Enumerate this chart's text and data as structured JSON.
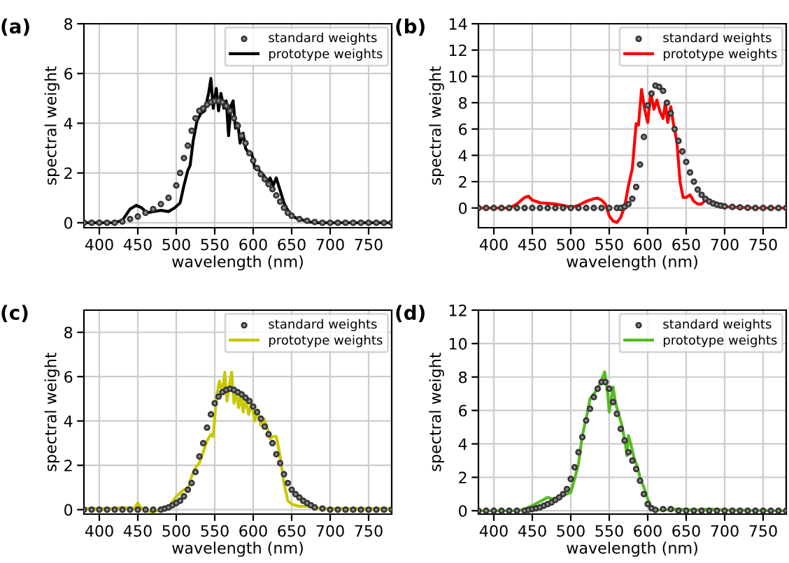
{
  "chart_data": [
    {
      "type": "line",
      "title": "(a)",
      "xlabel": "wavelength (nm)",
      "ylabel": "spectral weight",
      "xlim": [
        380,
        780
      ],
      "xticks": [
        400,
        450,
        500,
        550,
        600,
        650,
        700,
        750
      ],
      "ylim": [
        -0.2,
        8
      ],
      "yticks": [
        0,
        2,
        4,
        6,
        8
      ],
      "grid": true,
      "legend": "top right",
      "series": [
        {
          "name": "standard weights",
          "type": "scatter",
          "marker": "circle",
          "color": "#333333",
          "x": [
            380,
            390,
            400,
            410,
            420,
            430,
            440,
            450,
            460,
            470,
            480,
            490,
            500,
            505,
            510,
            515,
            520,
            525,
            530,
            535,
            540,
            545,
            550,
            555,
            560,
            565,
            570,
            575,
            580,
            585,
            590,
            595,
            600,
            605,
            610,
            615,
            620,
            625,
            630,
            635,
            640,
            645,
            650,
            660,
            670,
            680,
            690,
            700,
            710,
            720,
            730,
            740,
            750,
            760,
            770,
            780
          ],
          "values": [
            0,
            0,
            0,
            0,
            0,
            0.05,
            0.15,
            0.25,
            0.4,
            0.55,
            0.75,
            1.0,
            1.5,
            2.0,
            2.6,
            3.1,
            3.7,
            4.2,
            4.5,
            4.6,
            4.75,
            4.85,
            4.9,
            4.9,
            4.85,
            4.7,
            4.5,
            4.2,
            3.9,
            3.5,
            3.2,
            2.8,
            2.5,
            2.2,
            1.95,
            1.75,
            1.55,
            1.35,
            1.1,
            0.85,
            0.6,
            0.4,
            0.28,
            0.15,
            0.08,
            0.03,
            0,
            0,
            0,
            0,
            0,
            0,
            0,
            0,
            0,
            0
          ]
        },
        {
          "name": "prototype weights",
          "line_style": "solid",
          "color": "#000000",
          "x": [
            380,
            420,
            430,
            440,
            448,
            455,
            462,
            470,
            480,
            490,
            498,
            505,
            510,
            515,
            518,
            522,
            527,
            532,
            537,
            542,
            545,
            548,
            552,
            555,
            558,
            562,
            565,
            568,
            571,
            574,
            577,
            580,
            583,
            587,
            590,
            594,
            598,
            602,
            606,
            610,
            614,
            618,
            622,
            626,
            630,
            635,
            640,
            645,
            650,
            655,
            660,
            670,
            680,
            780
          ],
          "values": [
            0,
            0,
            0.1,
            0.55,
            0.7,
            0.6,
            0.4,
            0.45,
            0.5,
            0.45,
            0.6,
            0.8,
            1.5,
            2.1,
            2.3,
            3.3,
            4.1,
            4.4,
            4.5,
            5.2,
            5.8,
            4.6,
            5.4,
            4.5,
            5.2,
            4.6,
            4.9,
            3.5,
            4.7,
            4.9,
            3.8,
            4.0,
            3.2,
            3.6,
            3.0,
            2.8,
            2.8,
            2.2,
            2.2,
            2.0,
            1.9,
            1.6,
            1.8,
            1.5,
            1.8,
            1.3,
            0.8,
            0.5,
            0.3,
            0.2,
            0.15,
            0.05,
            0,
            0
          ]
        }
      ]
    },
    {
      "type": "line",
      "title": "(b)",
      "xlabel": "wavelength (nm)",
      "ylabel": "spectral weight",
      "xlim": [
        380,
        780
      ],
      "xticks": [
        400,
        450,
        500,
        550,
        600,
        650,
        700,
        750
      ],
      "ylim": [
        -1.5,
        14
      ],
      "yticks": [
        0,
        2,
        4,
        6,
        8,
        10,
        12,
        14
      ],
      "grid": true,
      "legend": "top right",
      "series": [
        {
          "name": "standard weights",
          "type": "scatter",
          "marker": "circle",
          "color": "#333333",
          "x": [
            380,
            390,
            400,
            410,
            420,
            430,
            440,
            450,
            460,
            470,
            480,
            490,
            500,
            510,
            520,
            530,
            540,
            550,
            560,
            565,
            570,
            575,
            580,
            585,
            590,
            595,
            600,
            605,
            610,
            615,
            620,
            625,
            630,
            635,
            640,
            645,
            650,
            655,
            660,
            665,
            670,
            675,
            680,
            685,
            690,
            695,
            700,
            710,
            720,
            730,
            740,
            750,
            760,
            770,
            780
          ],
          "values": [
            0,
            0,
            0,
            0,
            0,
            0,
            0,
            0,
            0,
            0,
            0,
            0,
            0,
            0,
            0,
            0,
            0,
            0,
            0,
            0,
            0.1,
            0.3,
            0.7,
            1.6,
            3.3,
            5.4,
            7.8,
            8.7,
            9.3,
            9.2,
            8.9,
            8.0,
            7.2,
            6.0,
            5.1,
            4.3,
            3.5,
            2.7,
            2.0,
            1.4,
            1.0,
            0.7,
            0.5,
            0.35,
            0.25,
            0.18,
            0.12,
            0.08,
            0.05,
            0.02,
            0,
            0,
            0,
            0,
            0
          ]
        },
        {
          "name": "prototype weights",
          "line_style": "solid",
          "color": "#ff0000",
          "x": [
            380,
            420,
            430,
            440,
            445,
            450,
            460,
            470,
            480,
            490,
            500,
            510,
            520,
            530,
            535,
            540,
            545,
            550,
            555,
            560,
            565,
            570,
            575,
            580,
            585,
            588,
            592,
            596,
            600,
            604,
            608,
            612,
            616,
            620,
            623,
            626,
            630,
            634,
            638,
            642,
            646,
            650,
            655,
            660,
            665,
            670,
            675,
            680,
            690,
            700,
            720,
            740,
            780
          ],
          "values": [
            0,
            0,
            0.3,
            0.8,
            0.9,
            0.6,
            0.4,
            0.35,
            0.3,
            0.2,
            0.05,
            0.2,
            0.5,
            0.7,
            0.75,
            0.6,
            0.3,
            -0.6,
            -1.0,
            -1.1,
            -0.7,
            0.1,
            1.7,
            3.0,
            6.4,
            6.3,
            9.0,
            7.5,
            6.5,
            8.8,
            7.5,
            8.2,
            7.3,
            6.8,
            8.0,
            6.5,
            7.7,
            6.2,
            5.0,
            2.0,
            0.8,
            0.8,
            1.0,
            0.5,
            0.3,
            0.3,
            0.6,
            0.4,
            0.2,
            0.1,
            0.05,
            0,
            0
          ]
        }
      ]
    },
    {
      "type": "line",
      "title": "(c)",
      "xlabel": "wavelength (nm)",
      "ylabel": "spectral weight",
      "xlim": [
        380,
        780
      ],
      "xticks": [
        400,
        450,
        500,
        550,
        600,
        650,
        700,
        750
      ],
      "ylim": [
        -0.2,
        9
      ],
      "yticks": [
        0,
        2,
        4,
        6,
        8
      ],
      "grid": true,
      "legend": "top right",
      "series": [
        {
          "name": "standard weights",
          "type": "scatter",
          "marker": "circle",
          "color": "#333333",
          "x": [
            380,
            390,
            400,
            410,
            420,
            430,
            440,
            450,
            460,
            470,
            480,
            485,
            490,
            495,
            500,
            505,
            510,
            515,
            520,
            525,
            530,
            535,
            540,
            545,
            550,
            555,
            560,
            565,
            570,
            575,
            580,
            585,
            590,
            595,
            600,
            605,
            610,
            615,
            620,
            625,
            630,
            635,
            640,
            645,
            650,
            655,
            660,
            665,
            670,
            675,
            680,
            690,
            700,
            710,
            720,
            730,
            740,
            750,
            760,
            770,
            780
          ],
          "values": [
            0,
            0,
            0,
            0,
            0,
            0,
            0,
            0,
            0,
            0,
            0,
            0.05,
            0.1,
            0.2,
            0.3,
            0.4,
            0.6,
            0.9,
            1.2,
            1.7,
            2.4,
            3.0,
            3.7,
            4.3,
            4.8,
            5.1,
            5.3,
            5.4,
            5.45,
            5.4,
            5.3,
            5.2,
            5.05,
            4.9,
            4.65,
            4.4,
            4.1,
            3.75,
            3.4,
            3.0,
            2.5,
            2.1,
            1.6,
            1.2,
            0.9,
            0.7,
            0.55,
            0.4,
            0.3,
            0.2,
            0.1,
            0.05,
            0,
            0,
            0,
            0,
            0,
            0,
            0,
            0,
            0
          ]
        },
        {
          "name": "prototype weights",
          "line_style": "solid",
          "color": "#c8c800",
          "x": [
            380,
            420,
            430,
            445,
            450,
            455,
            460,
            470,
            480,
            490,
            500,
            510,
            515,
            520,
            525,
            530,
            535,
            540,
            545,
            548,
            552,
            556,
            560,
            563,
            566,
            569,
            572,
            575,
            578,
            581,
            584,
            587,
            590,
            594,
            598,
            602,
            606,
            610,
            614,
            618,
            622,
            626,
            630,
            635,
            640,
            645,
            650,
            660,
            670,
            680,
            690,
            700,
            780
          ],
          "values": [
            0.05,
            0.05,
            0.1,
            0.05,
            0.3,
            0.05,
            -0.05,
            -0.1,
            0,
            0.1,
            0.6,
            0.9,
            0.9,
            1.5,
            1.9,
            2.1,
            2.6,
            3.1,
            3.4,
            3.3,
            5.0,
            5.8,
            5.3,
            6.2,
            4.9,
            5.6,
            6.2,
            4.8,
            5.4,
            4.6,
            5.1,
            4.4,
            5.0,
            4.3,
            4.8,
            4.0,
            4.5,
            3.8,
            4.1,
            3.7,
            3.2,
            3.3,
            3.3,
            2.4,
            1.2,
            0.4,
            0.25,
            0.15,
            0.15,
            0.1,
            0.05,
            0.05,
            0.05
          ]
        }
      ]
    },
    {
      "type": "line",
      "title": "(d)",
      "xlabel": "wavelength (nm)",
      "ylabel": "spectral weight",
      "xlim": [
        380,
        780
      ],
      "xticks": [
        400,
        450,
        500,
        550,
        600,
        650,
        700,
        750
      ],
      "ylim": [
        -0.2,
        12
      ],
      "yticks": [
        0,
        2,
        4,
        6,
        8,
        10,
        12
      ],
      "grid": true,
      "legend": "top right",
      "series": [
        {
          "name": "standard weights",
          "type": "scatter",
          "marker": "circle",
          "color": "#333333",
          "x": [
            380,
            390,
            400,
            410,
            420,
            430,
            440,
            445,
            450,
            455,
            460,
            465,
            470,
            475,
            480,
            485,
            490,
            495,
            500,
            505,
            510,
            515,
            520,
            525,
            530,
            535,
            540,
            545,
            550,
            555,
            560,
            565,
            570,
            575,
            580,
            585,
            590,
            595,
            600,
            605,
            610,
            620,
            630,
            640,
            650,
            660,
            670,
            680,
            690,
            700,
            710,
            720,
            730,
            740,
            750,
            760,
            770,
            780
          ],
          "values": [
            0,
            0,
            0,
            0,
            0,
            0,
            0,
            0.05,
            0.1,
            0.15,
            0.2,
            0.3,
            0.4,
            0.5,
            0.65,
            0.8,
            1.0,
            1.3,
            1.9,
            2.6,
            3.5,
            4.4,
            5.4,
            6.1,
            6.8,
            7.3,
            7.7,
            7.7,
            7.3,
            6.5,
            5.8,
            4.9,
            4.2,
            3.5,
            3.0,
            2.5,
            1.8,
            1.0,
            0.4,
            0.15,
            0.05,
            0.1,
            0.1,
            0,
            0,
            0,
            0,
            0,
            0,
            0,
            0,
            0,
            0,
            0,
            0,
            0,
            0,
            0
          ]
        },
        {
          "name": "prototype weights",
          "line_style": "solid",
          "color": "#55bb22",
          "x": [
            380,
            430,
            440,
            450,
            460,
            470,
            480,
            490,
            500,
            505,
            510,
            515,
            520,
            525,
            530,
            535,
            540,
            544,
            548,
            550,
            552,
            555,
            558,
            562,
            566,
            569,
            571,
            573,
            575,
            578,
            582,
            586,
            590,
            595,
            600,
            605,
            610,
            620,
            640,
            660,
            680,
            700,
            780
          ],
          "values": [
            0,
            0,
            0.1,
            0.3,
            0.55,
            0.8,
            0.65,
            0.9,
            1.1,
            1.9,
            2.8,
            4.5,
            5.5,
            6.7,
            7.0,
            7.3,
            7.8,
            8.3,
            7.0,
            5.9,
            6.5,
            7.4,
            6.5,
            5.8,
            5.2,
            4.5,
            4.0,
            3.3,
            4.5,
            4.0,
            3.2,
            2.7,
            2.0,
            1.4,
            0.7,
            0.2,
            0.05,
            0.05,
            0.1,
            0.05,
            0.1,
            0.05,
            0
          ]
        }
      ]
    }
  ]
}
